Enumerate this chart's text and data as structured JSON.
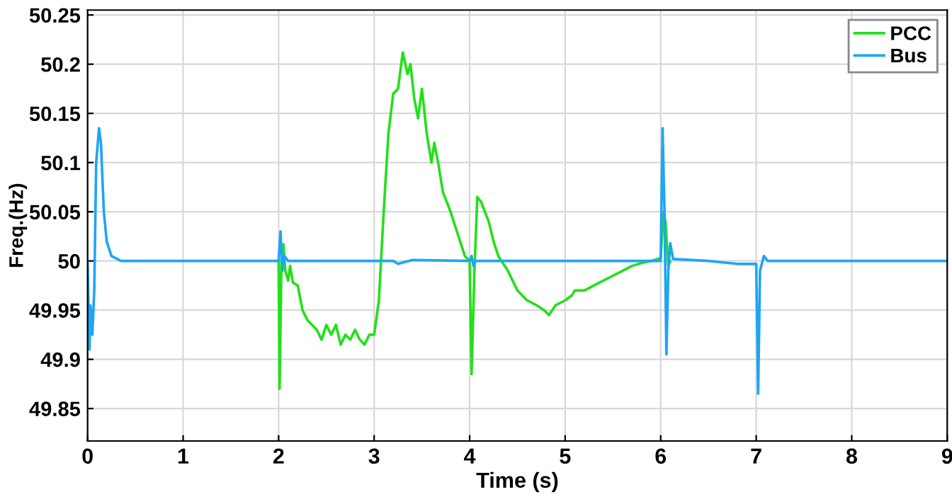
{
  "chart_data": {
    "type": "line",
    "xlabel": "Time (s)",
    "ylabel": "Freq.(Hz)",
    "xlim": [
      0,
      9
    ],
    "xticks": [
      0,
      1,
      2,
      3,
      4,
      5,
      6,
      7,
      8,
      9
    ],
    "ylim": [
      49.817,
      50.255
    ],
    "yticks": [
      49.85,
      49.9,
      49.95,
      50,
      50.05,
      50.1,
      50.15,
      50.2,
      50.25
    ],
    "grid": true,
    "legend": "top right",
    "line_style": "solid",
    "marker": "none",
    "series": [
      {
        "name": "PCC",
        "color": "#22e01a",
        "x": [
          2.0,
          2.01,
          2.03,
          2.05,
          2.07,
          2.1,
          2.12,
          2.15,
          2.2,
          2.25,
          2.3,
          2.35,
          2.4,
          2.45,
          2.5,
          2.55,
          2.6,
          2.65,
          2.7,
          2.75,
          2.8,
          2.85,
          2.9,
          2.95,
          3.0,
          3.05,
          3.1,
          3.15,
          3.2,
          3.25,
          3.3,
          3.35,
          3.38,
          3.42,
          3.46,
          3.5,
          3.55,
          3.6,
          3.63,
          3.67,
          3.72,
          3.8,
          3.85,
          3.9,
          3.95,
          4.0,
          4.02,
          4.05,
          4.08,
          4.12,
          4.2,
          4.25,
          4.3,
          4.4,
          4.5,
          4.6,
          4.7,
          4.78,
          4.83,
          4.9,
          5.0,
          5.07,
          5.1,
          5.2,
          5.3,
          5.4,
          5.5,
          5.6,
          5.7,
          5.8,
          5.9,
          6.0,
          6.03,
          6.05,
          6.08,
          6.1
        ],
        "values": [
          50,
          49.87,
          50.0,
          50.017,
          49.99,
          49.98,
          49.995,
          49.978,
          49.975,
          49.95,
          49.94,
          49.935,
          49.93,
          49.92,
          49.935,
          49.925,
          49.935,
          49.915,
          49.925,
          49.92,
          49.93,
          49.92,
          49.915,
          49.925,
          49.925,
          49.96,
          50.05,
          50.13,
          50.17,
          50.175,
          50.212,
          50.19,
          50.2,
          50.165,
          50.145,
          50.175,
          50.13,
          50.1,
          50.12,
          50.1,
          50.07,
          50.05,
          50.035,
          50.02,
          50.005,
          50.0,
          49.885,
          49.99,
          50.065,
          50.06,
          50.04,
          50.02,
          50.005,
          49.99,
          49.97,
          49.96,
          49.955,
          49.95,
          49.945,
          49.955,
          49.96,
          49.965,
          49.97,
          49.97,
          49.975,
          49.98,
          49.985,
          49.99,
          49.995,
          49.998,
          50.0,
          50.003,
          50.05,
          50.04,
          49.995,
          50.0
        ]
      },
      {
        "name": "Bus",
        "color": "#1ea5f5",
        "x": [
          0,
          0.01,
          0.02,
          0.03,
          0.05,
          0.07,
          0.09,
          0.12,
          0.14,
          0.17,
          0.2,
          0.25,
          0.35,
          2.0,
          2.02,
          2.04,
          2.06,
          2.1,
          3.2,
          3.25,
          3.4,
          4.0,
          4.02,
          4.04,
          4.06,
          6.0,
          6.02,
          6.04,
          6.06,
          6.08,
          6.1,
          6.13,
          6.5,
          6.8,
          7.0,
          7.02,
          7.04,
          7.08,
          7.12,
          9
        ],
        "values": [
          50,
          49.95,
          49.91,
          49.955,
          49.925,
          49.97,
          50.1,
          50.135,
          50.12,
          50.05,
          50.02,
          50.005,
          50.0,
          50.0,
          50.03,
          49.99,
          50.005,
          50.0,
          50.0,
          49.997,
          50.001,
          50.0,
          50.005,
          49.995,
          50.0,
          50.0,
          50.135,
          50.05,
          49.905,
          49.99,
          50.018,
          50.002,
          50.0,
          49.997,
          49.997,
          49.865,
          49.99,
          50.005,
          50.0,
          50
        ]
      }
    ]
  }
}
